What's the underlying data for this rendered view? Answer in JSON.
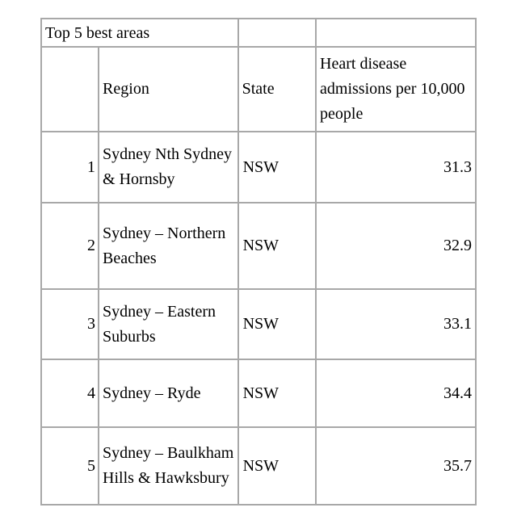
{
  "table": {
    "caption": "Top 5 best areas",
    "headers": {
      "rank": "",
      "region": "Region",
      "state": "State",
      "value": "Heart disease admissions per 10,000 people"
    },
    "rows": [
      {
        "rank": "1",
        "region": "Sydney Nth Sydney & Hornsby",
        "state": "NSW",
        "value": "31.3"
      },
      {
        "rank": "2",
        "region": "Sydney – Northern Beaches",
        "state": "NSW",
        "value": "32.9"
      },
      {
        "rank": "3",
        "region": "Sydney – Eastern Suburbs",
        "state": "NSW",
        "value": "33.1"
      },
      {
        "rank": "4",
        "region": "Sydney – Ryde",
        "state": "NSW",
        "value": "34.4"
      },
      {
        "rank": "5",
        "region": "Sydney – Baulkham Hills & Hawksbury",
        "state": "NSW",
        "value": "35.7"
      }
    ]
  }
}
